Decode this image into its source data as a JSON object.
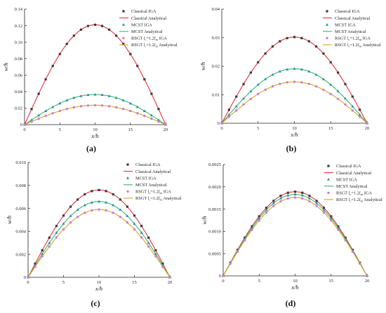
{
  "chart_data": [
    {
      "type": "line",
      "panel_label": "(a)",
      "xlabel": "x/h",
      "ylabel": "w/h",
      "xlim": [
        0,
        20
      ],
      "ylim": [
        0,
        0.14
      ],
      "xticks": [
        0,
        5,
        10,
        15,
        20
      ],
      "xtick_labels": [
        "0",
        "5",
        "10",
        "15",
        "20"
      ],
      "yticks": [
        0,
        0.02,
        0.04,
        0.06,
        0.08,
        0.1,
        0.12,
        0.14
      ],
      "ytick_labels": [
        "0",
        "0.02",
        "0.04",
        "0.06",
        "0.08",
        "0.10",
        "0.12",
        "0.14"
      ],
      "legend_placement": "top-right",
      "series_peaks": [
        0.121,
        0.0365,
        0.0235
      ]
    },
    {
      "type": "line",
      "panel_label": "(b)",
      "xlabel": "x/h",
      "ylabel": "w/h",
      "xlim": [
        0,
        20
      ],
      "ylim": [
        0,
        0.04
      ],
      "xticks": [
        0,
        5,
        10,
        15,
        20
      ],
      "xtick_labels": [
        "0",
        "5",
        "10",
        "15",
        "20"
      ],
      "yticks": [
        0,
        0.01,
        0.02,
        0.03,
        0.04
      ],
      "ytick_labels": [
        "0",
        "0.01",
        "0.02",
        "0.03",
        "0.04"
      ],
      "legend_placement": "top-right",
      "series_peaks": [
        0.0302,
        0.0191,
        0.0145
      ]
    },
    {
      "type": "line",
      "panel_label": "(c)",
      "xlabel": "x/h",
      "ylabel": "w/h",
      "xlim": [
        0,
        20
      ],
      "ylim": [
        0,
        0.01
      ],
      "xticks": [
        0,
        5,
        10,
        15,
        20
      ],
      "xtick_labels": [
        "0",
        "5",
        "10",
        "15",
        "20"
      ],
      "yticks": [
        0,
        0.002,
        0.004,
        0.006,
        0.008,
        0.01
      ],
      "ytick_labels": [
        "0",
        "0.002",
        "0.004",
        "0.006",
        "0.008",
        "0.010"
      ],
      "legend_placement": "top-right",
      "series_peaks": [
        0.0076,
        0.0066,
        0.0059
      ]
    },
    {
      "type": "line",
      "panel_label": "(d)",
      "xlabel": "x/h",
      "ylabel": "w/h",
      "xlim": [
        0,
        20
      ],
      "ylim": [
        0,
        0.0025
      ],
      "xticks": [
        0,
        5,
        10,
        15,
        20
      ],
      "xtick_labels": [
        "0",
        "5",
        "10",
        "15",
        "20"
      ],
      "yticks": [
        0,
        0.0005,
        0.001,
        0.0015,
        0.002,
        0.0025
      ],
      "ytick_labels": [
        "0",
        "0.0005",
        "0.0010",
        "0.0015",
        "0.0020",
        "0.0025"
      ],
      "legend_placement": "top-right",
      "series_peaks": [
        0.00189,
        0.00183,
        0.00176
      ]
    }
  ],
  "series_styles": [
    {
      "color": "#3a3a3a",
      "kind": "square-markers"
    },
    {
      "color": "#e8333c",
      "kind": "line"
    },
    {
      "color": "#1e8fa8",
      "kind": "triangle-markers"
    },
    {
      "color": "#3cb371",
      "kind": "line"
    },
    {
      "color": "#c77ed9",
      "kind": "circle-markers"
    },
    {
      "color": "#d9a21b",
      "kind": "line"
    }
  ],
  "legend": [
    {
      "text": "Classical IGA"
    },
    {
      "text": "Classical Analytical"
    },
    {
      "text": "MCST IGA"
    },
    {
      "text": "MCST Analytical"
    },
    {
      "pre": "RSGT ",
      "l": "l",
      "sub1": "c",
      "mid": "=1.2",
      "l2": "l",
      "sub2": "m",
      "post": " IGA"
    },
    {
      "pre": "RSGT ",
      "l": "l",
      "sub1": "c",
      "mid": "=1.2",
      "l2": "l",
      "sub2": "m",
      "post": " Analytical"
    }
  ]
}
